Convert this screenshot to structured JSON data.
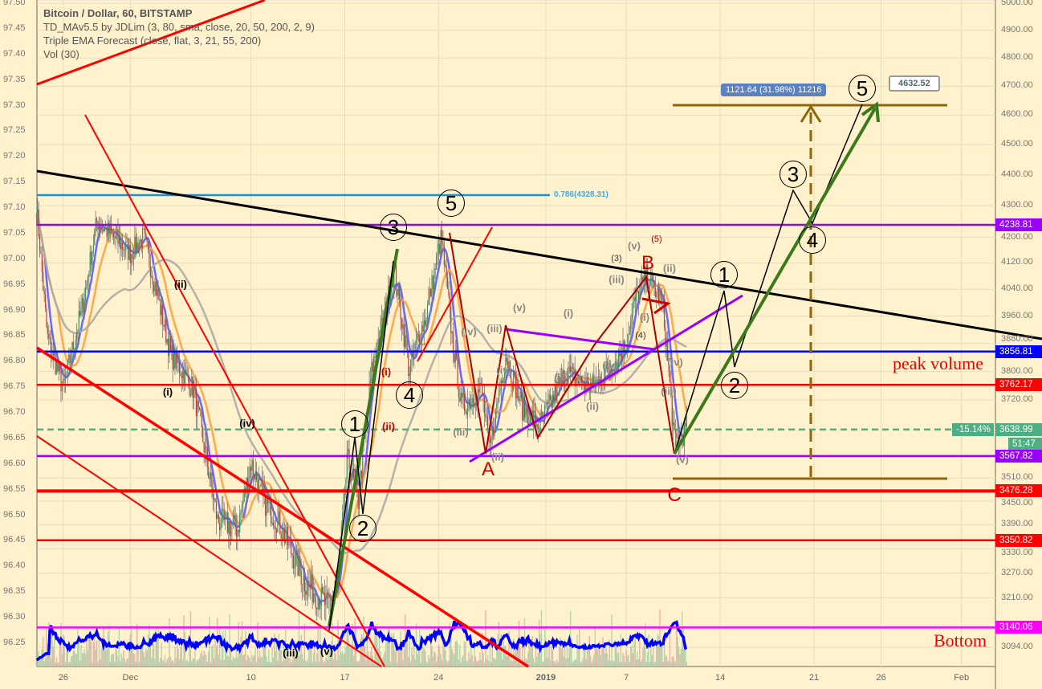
{
  "legend": {
    "title": "Bitcoin / Dollar, 60, BITSTAMP",
    "indicators": [
      "TD_MAv5.5 by JDLim (3, 80, sma, close, 20, 50, 200, 2, 9)",
      "Triple EMA Forecast (close, flat, 3, 21, 55, 200)",
      "Vol (30)"
    ]
  },
  "chart_data": {
    "type": "candlestick",
    "symbol": "BTCUSD",
    "timeframe": "60",
    "y_right_scale": "log",
    "ylim_right": [
      3094,
      5000
    ],
    "right_ticks": [
      "5000.00",
      "4900.00",
      "4800.00",
      "4700.00",
      "4600.00",
      "4500.00",
      "4400.00",
      "4300.00",
      "4200.00",
      "4120.00",
      "4040.00",
      "3960.00",
      "3880.00",
      "3800.00",
      "3720.00",
      "3510.00",
      "3450.00",
      "3390.00",
      "3330.00",
      "3270.00",
      "3210.00",
      "3094.00"
    ],
    "left_ticks": [
      "97.50",
      "97.45",
      "97.40",
      "97.35",
      "97.30",
      "97.25",
      "97.20",
      "97.15",
      "97.10",
      "97.05",
      "97.00",
      "96.95",
      "96.90",
      "96.85",
      "96.80",
      "96.75",
      "96.70",
      "96.65",
      "96.60",
      "96.55",
      "96.50",
      "96.45",
      "96.40",
      "96.35",
      "96.30",
      "96.25"
    ],
    "x_ticks": [
      {
        "label": "26",
        "day": -36
      },
      {
        "label": "Dec",
        "day": -31
      },
      {
        "label": "10",
        "day": -22
      },
      {
        "label": "17",
        "day": -15
      },
      {
        "label": "24",
        "day": -8
      },
      {
        "label": "2019",
        "day": 0
      },
      {
        "label": "7",
        "day": 6
      },
      {
        "label": "14",
        "day": 13
      },
      {
        "label": "21",
        "day": 20
      },
      {
        "label": "26",
        "day": 25
      },
      {
        "label": "Feb",
        "day": 31
      }
    ],
    "price_path": [
      [
        -38,
        4300
      ],
      [
        -37.2,
        3900
      ],
      [
        -36,
        3750
      ],
      [
        -34.5,
        4000
      ],
      [
        -33.5,
        4250
      ],
      [
        -31,
        4150
      ],
      [
        -30,
        4200
      ],
      [
        -28,
        3850
      ],
      [
        -26.3,
        3750
      ],
      [
        -24.5,
        3400
      ],
      [
        -23,
        3380
      ],
      [
        -22,
        3550
      ],
      [
        -21,
        3450
      ],
      [
        -20,
        3400
      ],
      [
        -18,
        3250
      ],
      [
        -16.3,
        3190
      ],
      [
        -15.5,
        3250
      ],
      [
        -14.8,
        3560
      ],
      [
        -14,
        3450
      ],
      [
        -13,
        3800
      ],
      [
        -11.3,
        4100
      ],
      [
        -10.2,
        3800
      ],
      [
        -9.5,
        3900
      ],
      [
        -9,
        3950
      ],
      [
        -7.8,
        4200
      ],
      [
        -7,
        3900
      ],
      [
        -6.3,
        3700
      ],
      [
        -4.8,
        3750
      ],
      [
        -4.2,
        3580
      ],
      [
        -3,
        3850
      ],
      [
        -1.8,
        3700
      ],
      [
        -0.5,
        3650
      ],
      [
        0.5,
        3720
      ],
      [
        1.5,
        3800
      ],
      [
        2.5,
        3770
      ],
      [
        3.5,
        3760
      ],
      [
        5,
        3820
      ],
      [
        6,
        3880
      ],
      [
        6.6,
        4000
      ],
      [
        7.5,
        4080
      ],
      [
        8.7,
        4000
      ],
      [
        9.6,
        3600
      ],
      [
        10.5,
        3640
      ]
    ],
    "levels": [
      {
        "price": "4238.81",
        "color": "#9900ff"
      },
      {
        "price": "3856.81",
        "color": "#0000ff"
      },
      {
        "price": "3762.17",
        "color": "#ff0000"
      },
      {
        "price": "3638.99",
        "color": "#4caf82",
        "change": "-15.14%",
        "countdown": "51:47"
      },
      {
        "price": "3567.82",
        "color": "#9900ff"
      },
      {
        "price": "3476.28",
        "color": "#ff0000"
      },
      {
        "price": "3350.82",
        "color": "#ff0000"
      },
      {
        "price": "3140.06",
        "color": "#ff00ff"
      }
    ],
    "fib_label": "0.786(4328.31)",
    "measure_label": "1121.64 (31.98%) 11216",
    "target_label": "4632.52",
    "moving_average_colors": [
      "#5a5aff",
      "#ffa040",
      "#aaaaaa"
    ],
    "volume_line_color": "#0000ff"
  },
  "annotations": {
    "peak_volume": "peak volume",
    "bottom": "Bottom",
    "big_waves": [
      "1",
      "2",
      "3",
      "4",
      "5",
      "1",
      "2",
      "3",
      "4",
      "5"
    ],
    "abc": [
      "A",
      "B",
      "C"
    ],
    "small": [
      "(i)",
      "(ii)",
      "(iii)",
      "(iv)",
      "(v)",
      "(i)",
      "(ii)",
      "(iv)",
      "(iii)",
      "(v)",
      "(iv)",
      "(iii)",
      "(ii)",
      "(iii)",
      "(v)",
      "(i)",
      "(ii)",
      "(iii)",
      "(iv)",
      "(v)",
      "(3)",
      "(4)",
      "(5)",
      "(i)",
      "(ii)",
      "(iv)",
      "(iii)"
    ]
  }
}
